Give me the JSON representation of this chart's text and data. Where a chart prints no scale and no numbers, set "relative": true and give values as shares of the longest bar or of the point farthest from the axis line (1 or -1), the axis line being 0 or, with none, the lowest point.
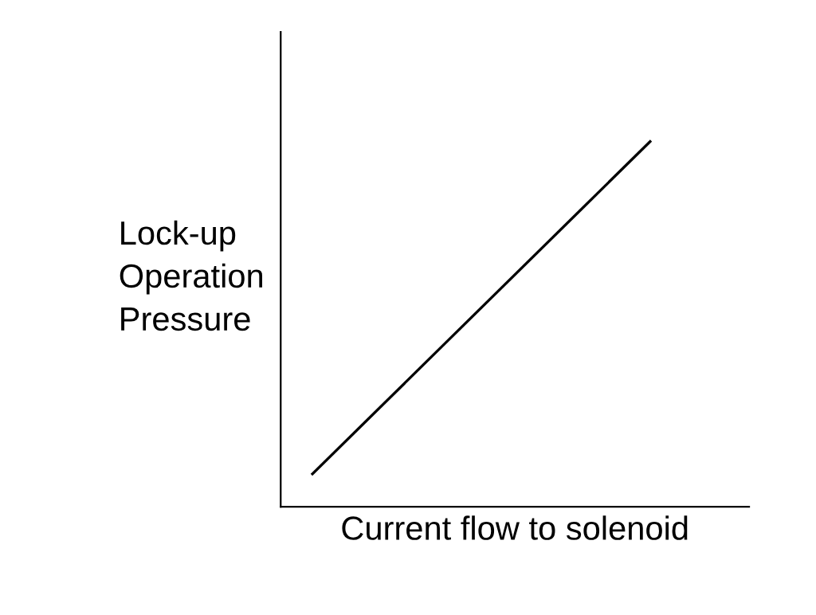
{
  "chart_data": {
    "type": "line",
    "relative": true,
    "xlabel": "Current flow to solenoid",
    "ylabel": "Lock-up\nOperation\nPressure",
    "categories": [
      null,
      null
    ],
    "series": [
      {
        "color": "#000000",
        "values": [
          0.09,
          1
        ]
      }
    ],
    "marker": "none",
    "line_style": "solid"
  }
}
